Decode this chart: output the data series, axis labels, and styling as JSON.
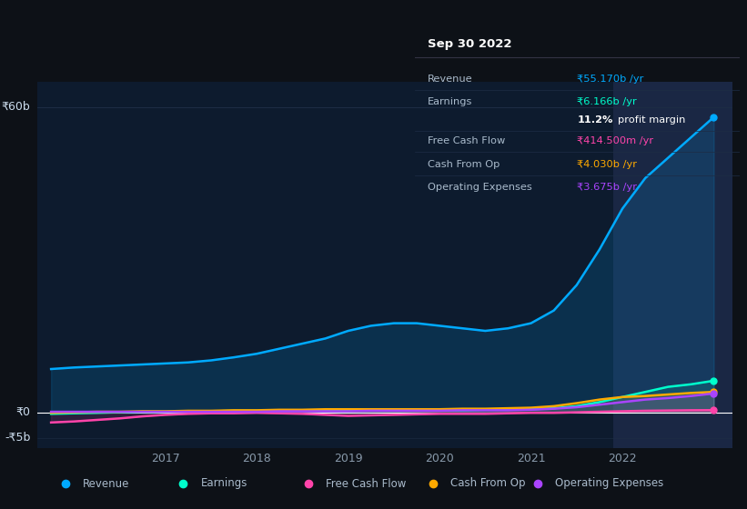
{
  "bg_color": "#0d1117",
  "plot_bg_color": "#0d1b2e",
  "highlight_bg_color": "#1a2744",
  "grid_color": "#1e2d45",
  "text_color": "#8899aa",
  "title_color": "#ffffff",
  "y_label_color": "#ccddee",
  "years": [
    2015.75,
    2016.0,
    2016.25,
    2016.5,
    2016.75,
    2017.0,
    2017.25,
    2017.5,
    2017.75,
    2018.0,
    2018.25,
    2018.5,
    2018.75,
    2019.0,
    2019.25,
    2019.5,
    2019.75,
    2020.0,
    2020.25,
    2020.5,
    2020.75,
    2021.0,
    2021.25,
    2021.5,
    2021.75,
    2022.0,
    2022.25,
    2022.5,
    2022.75,
    2023.0
  ],
  "revenue": [
    8.5,
    8.8,
    9.0,
    9.2,
    9.4,
    9.6,
    9.8,
    10.2,
    10.8,
    11.5,
    12.5,
    13.5,
    14.5,
    16.0,
    17.0,
    17.5,
    17.5,
    17.0,
    16.5,
    16.0,
    16.5,
    17.5,
    20.0,
    25.0,
    32.0,
    40.0,
    46.0,
    50.0,
    54.0,
    58.0
  ],
  "earnings": [
    -0.3,
    -0.2,
    -0.1,
    0.0,
    0.1,
    0.1,
    0.1,
    0.2,
    0.3,
    0.3,
    0.3,
    0.3,
    0.3,
    0.3,
    0.4,
    0.4,
    0.4,
    0.4,
    0.4,
    0.5,
    0.5,
    0.6,
    0.8,
    1.2,
    2.0,
    3.0,
    4.0,
    5.0,
    5.5,
    6.2
  ],
  "free_cash_flow": [
    -2.0,
    -1.8,
    -1.5,
    -1.2,
    -0.8,
    -0.5,
    -0.3,
    -0.2,
    -0.2,
    -0.1,
    -0.2,
    -0.3,
    -0.5,
    -0.7,
    -0.6,
    -0.5,
    -0.4,
    -0.3,
    -0.3,
    -0.3,
    -0.2,
    -0.1,
    -0.1,
    0.0,
    0.1,
    0.2,
    0.3,
    0.35,
    0.4,
    0.42
  ],
  "cash_from_op": [
    -0.1,
    0.0,
    0.1,
    0.1,
    0.2,
    0.2,
    0.3,
    0.3,
    0.4,
    0.4,
    0.5,
    0.5,
    0.6,
    0.6,
    0.6,
    0.6,
    0.6,
    0.6,
    0.7,
    0.7,
    0.8,
    0.9,
    1.2,
    1.8,
    2.5,
    3.0,
    3.2,
    3.5,
    3.8,
    4.0
  ],
  "operating_expenses": [
    0.1,
    0.1,
    0.1,
    0.1,
    0.1,
    0.1,
    0.1,
    0.1,
    0.1,
    0.1,
    0.2,
    0.2,
    0.2,
    0.2,
    0.3,
    0.3,
    0.3,
    0.3,
    0.4,
    0.4,
    0.4,
    0.5,
    0.7,
    1.0,
    1.5,
    2.0,
    2.5,
    2.8,
    3.2,
    3.7
  ],
  "revenue_color": "#00aaff",
  "earnings_color": "#00ffcc",
  "free_cash_flow_color": "#ff44aa",
  "cash_from_op_color": "#ffaa00",
  "operating_expenses_color": "#aa44ff",
  "x_ticks": [
    2017,
    2018,
    2019,
    2020,
    2021,
    2022
  ],
  "y_tick_labels": [
    "-₹5b",
    "₹0",
    "₹60b"
  ],
  "ylim": [
    -7,
    65
  ],
  "xlim": [
    2015.6,
    2023.2
  ],
  "highlight_start": 2021.9,
  "highlight_end": 2023.2,
  "tooltip_title": "Sep 30 2022",
  "tooltip_rows": [
    {
      "label": "Revenue",
      "value": "₹55.170b /yr",
      "value_color": "#00aaff"
    },
    {
      "label": "Earnings",
      "value": "₹6.166b /yr",
      "value_color": "#00ffcc"
    },
    {
      "label": "",
      "value": "11.2% profit margin",
      "value_color": "#ffffff"
    },
    {
      "label": "Free Cash Flow",
      "value": "₹414.500m /yr",
      "value_color": "#ff44aa"
    },
    {
      "label": "Cash From Op",
      "value": "₹4.030b /yr",
      "value_color": "#ffaa00"
    },
    {
      "label": "Operating Expenses",
      "value": "₹3.675b /yr",
      "value_color": "#aa44ff"
    }
  ],
  "legend_items": [
    {
      "label": "Revenue",
      "color": "#00aaff"
    },
    {
      "label": "Earnings",
      "color": "#00ffcc"
    },
    {
      "label": "Free Cash Flow",
      "color": "#ff44aa"
    },
    {
      "label": "Cash From Op",
      "color": "#ffaa00"
    },
    {
      "label": "Operating Expenses",
      "color": "#aa44ff"
    }
  ]
}
